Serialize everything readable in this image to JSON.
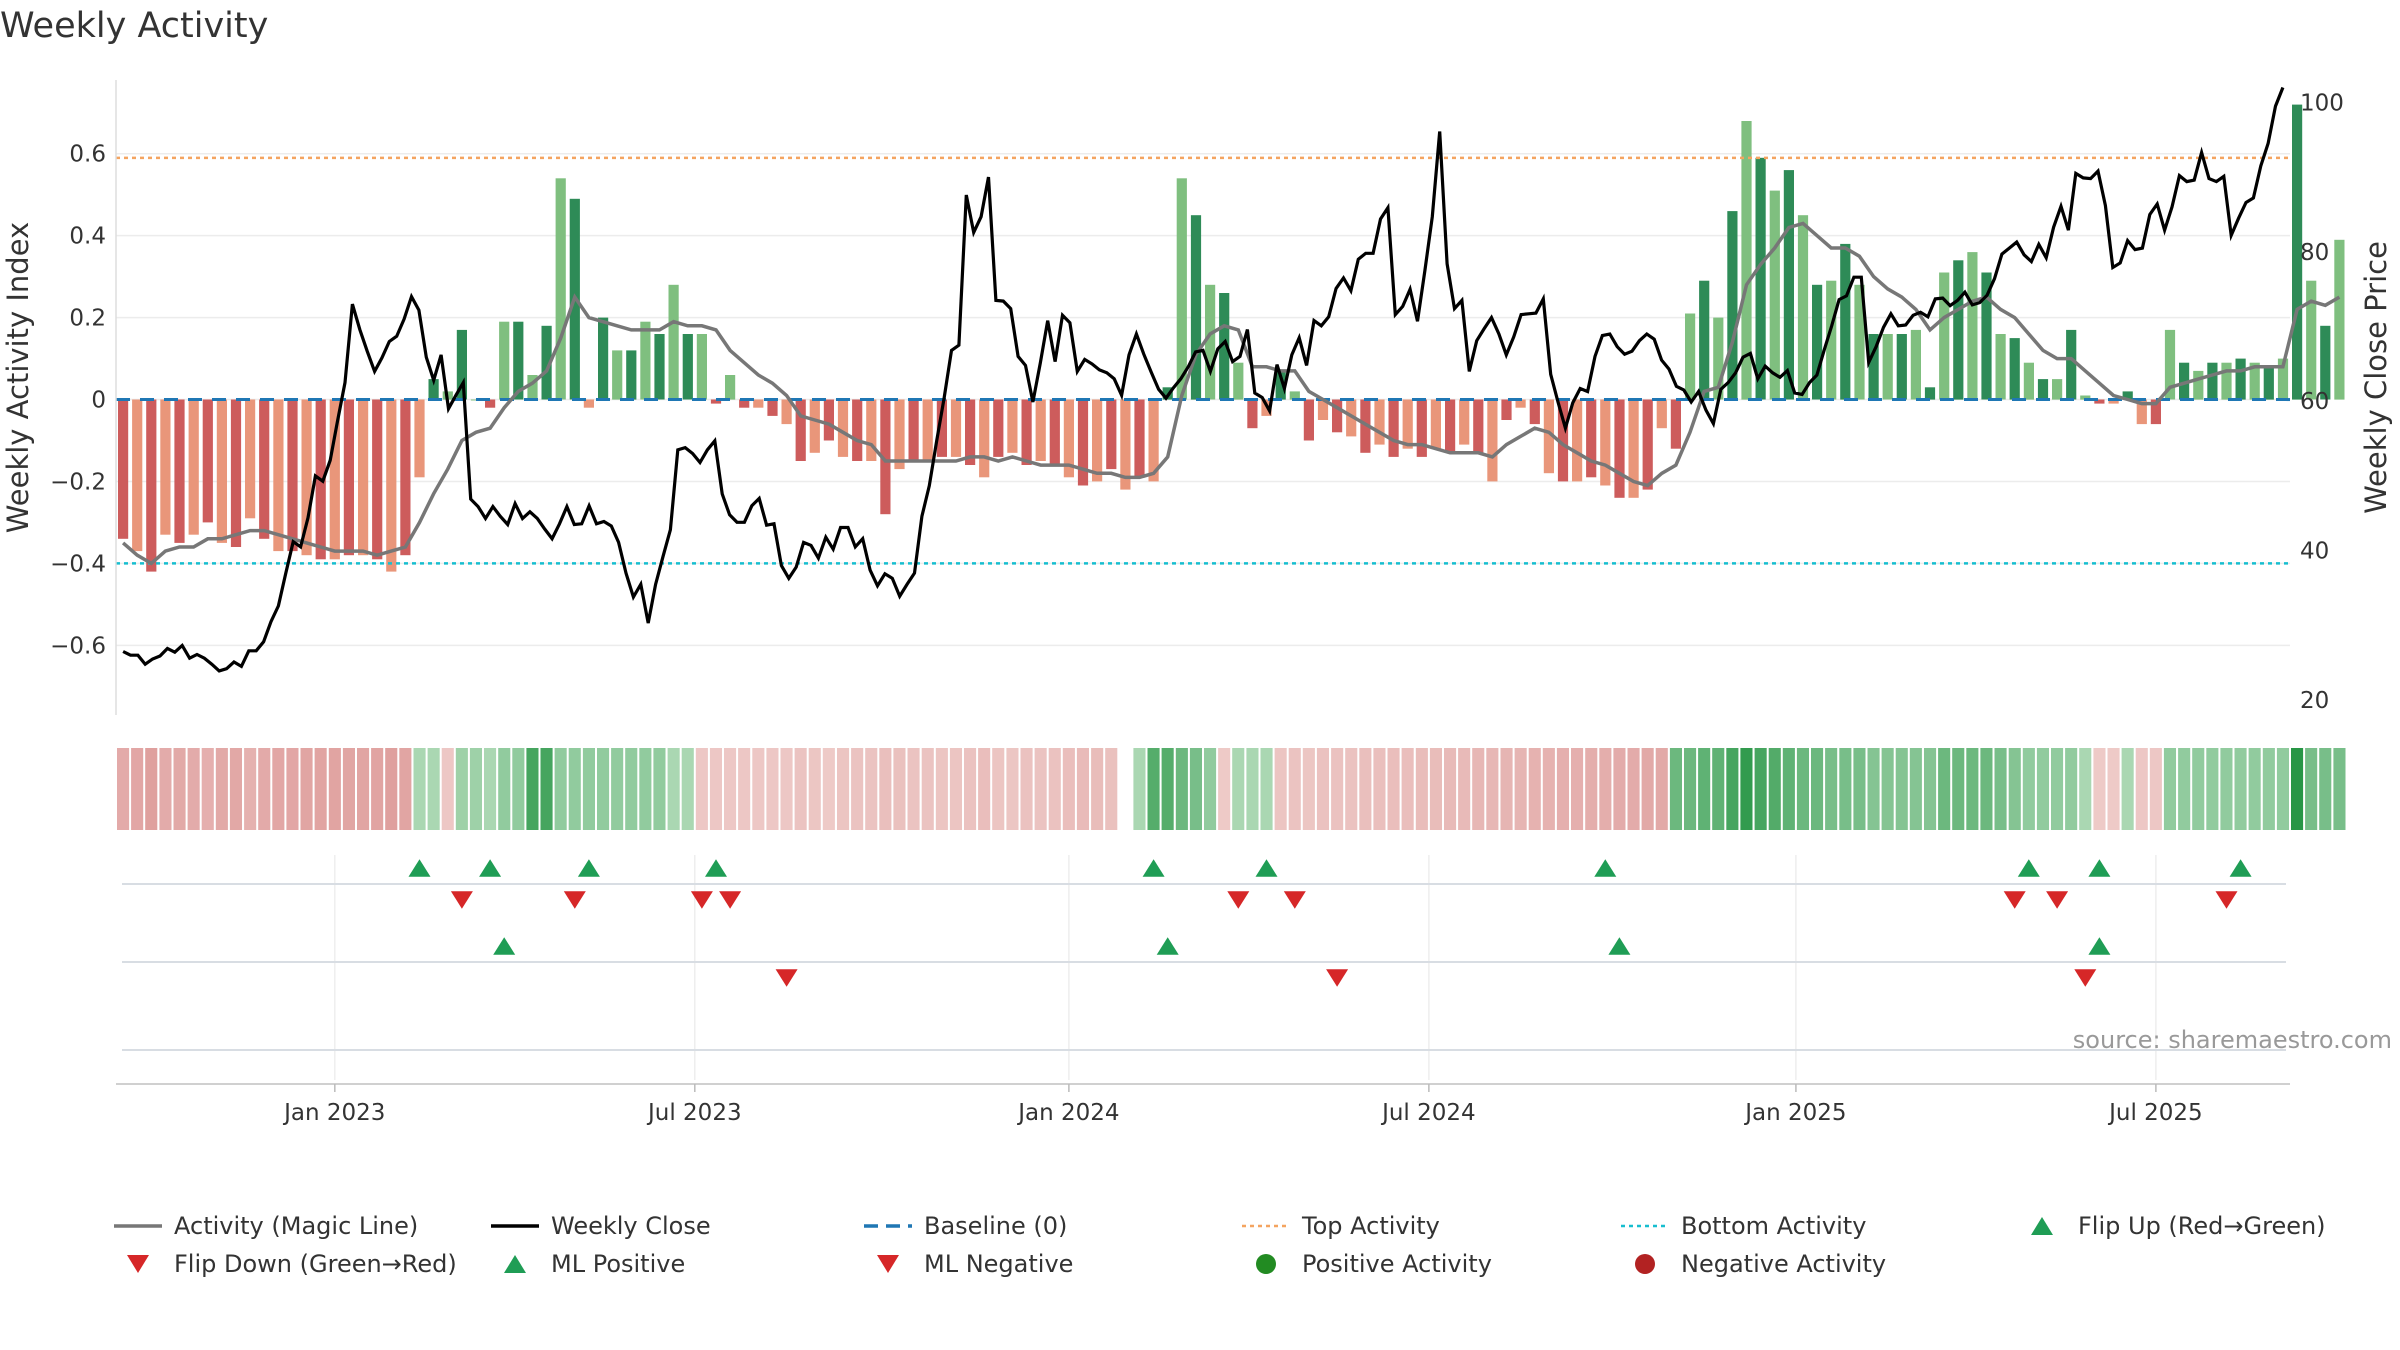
{
  "title": "Weekly Activity",
  "source": "source: sharemaestro.com",
  "colors": {
    "green_strong": "#2e8b57",
    "green_light": "#7fbf7f",
    "red_strong": "#cd5c5c",
    "red_light": "#e9967a",
    "magic_line": "#777777",
    "close_line": "#000000",
    "baseline": "#1f77b4",
    "top": "#f4a460",
    "bottom": "#17becf",
    "flip_up": "#1f9d55",
    "flip_down": "#d62728"
  },
  "chart_data": {
    "type": "bar+line",
    "title": "Weekly Activity",
    "ylabel_left": "Weekly Activity Index",
    "ylabel_right": "Weekly Close Price",
    "ylim_left": [
      -0.77,
      0.78
    ],
    "ylim_right": [
      18,
      103
    ],
    "yticks_left": [
      {
        "v": 0.6,
        "label": "0.6"
      },
      {
        "v": 0.4,
        "label": "0.4"
      },
      {
        "v": 0.2,
        "label": "0.2"
      },
      {
        "v": 0,
        "label": "0"
      },
      {
        "v": -0.2,
        "label": "−0.2"
      },
      {
        "v": -0.4,
        "label": "−0.4"
      },
      {
        "v": -0.6,
        "label": "−0.6"
      }
    ],
    "yticks_right": [
      {
        "v": 100,
        "label": "100"
      },
      {
        "v": 80,
        "label": "80"
      },
      {
        "v": 60,
        "label": "60"
      },
      {
        "v": 40,
        "label": "40"
      },
      {
        "v": 20,
        "label": "20"
      }
    ],
    "x_range_weeks": [
      0,
      154
    ],
    "xticks": [
      {
        "week": 15,
        "label": "Jan 2023"
      },
      {
        "week": 40.5,
        "label": "Jul 2023"
      },
      {
        "week": 67,
        "label": "Jan 2024"
      },
      {
        "week": 92.5,
        "label": "Jul 2024"
      },
      {
        "week": 118.5,
        "label": "Jan 2025"
      },
      {
        "week": 144,
        "label": "Jul 2025"
      }
    ],
    "top_activity": 0.59,
    "bottom_activity": -0.4,
    "baseline": 0,
    "activity": [
      -0.34,
      -0.37,
      -0.42,
      -0.33,
      -0.35,
      -0.33,
      -0.3,
      -0.35,
      -0.36,
      -0.29,
      -0.34,
      -0.37,
      -0.37,
      -0.38,
      -0.39,
      -0.39,
      -0.38,
      -0.38,
      -0.39,
      -0.42,
      -0.38,
      -0.19,
      0.05,
      0.02,
      0.17,
      0,
      -0.02,
      0.19,
      0.19,
      0.06,
      0.18,
      0.54,
      0.49,
      -0.02,
      0.2,
      0.12,
      0.12,
      0.19,
      0.16,
      0.28,
      0.16,
      0.16,
      -0.01,
      0.06,
      -0.02,
      -0.02,
      -0.04,
      -0.06,
      -0.15,
      -0.13,
      -0.1,
      -0.14,
      -0.15,
      -0.15,
      -0.28,
      -0.17,
      -0.15,
      -0.15,
      -0.14,
      -0.14,
      -0.16,
      -0.19,
      -0.14,
      -0.13,
      -0.16,
      -0.15,
      -0.16,
      -0.19,
      -0.21,
      -0.2,
      -0.17,
      -0.22,
      -0.19,
      -0.2,
      0.03,
      0.54,
      0.45,
      0.28,
      0.26,
      0.09,
      -0.07,
      -0.04,
      0.07,
      0.02,
      -0.1,
      -0.05,
      -0.08,
      -0.09,
      -0.13,
      -0.11,
      -0.14,
      -0.12,
      -0.14,
      -0.12,
      -0.13,
      -0.11,
      -0.13,
      -0.2,
      -0.05,
      -0.02,
      -0.06,
      -0.18,
      -0.2,
      -0.2,
      -0.19,
      -0.21,
      -0.24,
      -0.24,
      -0.22,
      -0.07,
      -0.12,
      0.21,
      0.29,
      0.2,
      0.46,
      0.68,
      0.59,
      0.51,
      0.56,
      0.45,
      0.28,
      0.29,
      0.38,
      0.28,
      0.16,
      0.16,
      0.16,
      0.17,
      0.03,
      0.31,
      0.34,
      0.36,
      0.31,
      0.16,
      0.15,
      0.09,
      0.05,
      0.05,
      0.17,
      0.01,
      -0.01,
      -0.01,
      0.02,
      -0.06,
      -0.06,
      0.17,
      0.09,
      0.07,
      0.09,
      0.09,
      0.1,
      0.09,
      0.08,
      0.1,
      0.72,
      0.29,
      0.18,
      0.39
    ],
    "magic_line": [
      -0.35,
      -0.38,
      -0.4,
      -0.37,
      -0.36,
      -0.36,
      -0.34,
      -0.34,
      -0.33,
      -0.32,
      -0.32,
      -0.33,
      -0.34,
      -0.35,
      -0.36,
      -0.37,
      -0.37,
      -0.37,
      -0.38,
      -0.37,
      -0.36,
      -0.3,
      -0.23,
      -0.17,
      -0.1,
      -0.08,
      -0.07,
      -0.02,
      0.02,
      0.04,
      0.07,
      0.15,
      0.25,
      0.2,
      0.19,
      0.18,
      0.17,
      0.17,
      0.17,
      0.19,
      0.18,
      0.18,
      0.17,
      0.12,
      0.09,
      0.06,
      0.04,
      0.01,
      -0.04,
      -0.05,
      -0.06,
      -0.08,
      -0.1,
      -0.11,
      -0.15,
      -0.15,
      -0.15,
      -0.15,
      -0.15,
      -0.15,
      -0.14,
      -0.14,
      -0.15,
      -0.14,
      -0.15,
      -0.16,
      -0.16,
      -0.16,
      -0.17,
      -0.18,
      -0.18,
      -0.19,
      -0.19,
      -0.18,
      -0.14,
      0.01,
      0.11,
      0.16,
      0.18,
      0.17,
      0.08,
      0.08,
      0.07,
      0.07,
      0.02,
      0,
      -0.02,
      -0.04,
      -0.06,
      -0.08,
      -0.1,
      -0.11,
      -0.11,
      -0.12,
      -0.13,
      -0.13,
      -0.13,
      -0.14,
      -0.11,
      -0.09,
      -0.07,
      -0.08,
      -0.11,
      -0.13,
      -0.15,
      -0.16,
      -0.18,
      -0.2,
      -0.21,
      -0.18,
      -0.16,
      -0.08,
      0.02,
      0.03,
      0.14,
      0.28,
      0.33,
      0.37,
      0.42,
      0.43,
      0.4,
      0.37,
      0.37,
      0.35,
      0.3,
      0.27,
      0.25,
      0.22,
      0.17,
      0.2,
      0.22,
      0.24,
      0.25,
      0.22,
      0.2,
      0.16,
      0.12,
      0.1,
      0.1,
      0.07,
      0.04,
      0.01,
      0,
      -0.01,
      -0.01,
      0.03,
      0.04,
      0.05,
      0.06,
      0.07,
      0.07,
      0.08,
      0.08,
      0.08,
      0.22,
      0.24,
      0.23,
      0.25
    ],
    "weekly_close": [
      26.5,
      26,
      26,
      24.8,
      25.5,
      25.9,
      26.9,
      26.4,
      27.3,
      25.6,
      26.1,
      25.6,
      24.8,
      23.9,
      24.2,
      25.1,
      24.5,
      26.6,
      26.6,
      27.8,
      30.5,
      32.6,
      37,
      41.2,
      40.5,
      44.4,
      50,
      49.3,
      52.1,
      57.4,
      62.5,
      73,
      69.6,
      66.7,
      64,
      65.8,
      68,
      68.7,
      71,
      74,
      72.2,
      65.9,
      62.8,
      66.2,
      59,
      60.8,
      62.5,
      46.9,
      45.9,
      44.3,
      45.9,
      44.6,
      43.5,
      46.3,
      44.3,
      45.2,
      44.3,
      42.9,
      41.6,
      43.6,
      45.9,
      43.5,
      43.6,
      46,
      43.6,
      43.9,
      43.3,
      41.1,
      37,
      33.8,
      35.5,
      30.3,
      35.5,
      39.2,
      42.8,
      53.5,
      53.8,
      53,
      51.8,
      53.5,
      54.7,
      47.6,
      44.8,
      43.8,
      43.8,
      46,
      47,
      43.4,
      43.6,
      38,
      36.3,
      37.8,
      41.1,
      40.7,
      39,
      41.8,
      40.2,
      43.1,
      43.1,
      40.5,
      41.6,
      37.4,
      35.3,
      36.9,
      36.3,
      33.9,
      35.5,
      37,
      44.6,
      48.7,
      54.7,
      60.4,
      66.8,
      67.5,
      87.6,
      82.6,
      84.7,
      90,
      73.5,
      73.4,
      72.4,
      66,
      64.8,
      59.9,
      65.1,
      70.8,
      65.3,
      71.5,
      70.5,
      64,
      65.6,
      65,
      64.2,
      63.8,
      63,
      60.8,
      66.2,
      69,
      66.3,
      63.9,
      61.6,
      60.4,
      61.8,
      63,
      64.6,
      66.6,
      66.8,
      64,
      67,
      68,
      65.3,
      66,
      69.6,
      61.1,
      60.5,
      58.7,
      64.9,
      61.7,
      66.2,
      68.5,
      64.8,
      70.8,
      70.1,
      71.3,
      75.1,
      76.5,
      74.8,
      79,
      79.8,
      79.8,
      84.4,
      85.9,
      71.6,
      72.7,
      75,
      70.7,
      77.5,
      84.7,
      96.1,
      78.4,
      72.4,
      73.5,
      64,
      68.1,
      69.7,
      71.2,
      69,
      66.2,
      68.6,
      71.6,
      71.7,
      71.8,
      73.7,
      63.6,
      59.9,
      56.4,
      59.8,
      61.7,
      61.3,
      66,
      68.8,
      69,
      67.3,
      66.3,
      66.7,
      68.1,
      69,
      68.3,
      65.5,
      64.3,
      62,
      61.5,
      59.9,
      61.3,
      58.8,
      57,
      61.6,
      62.5,
      63.8,
      65.9,
      66.4,
      63,
      64.7,
      63.8,
      63.2,
      64.1,
      61.1,
      60.9,
      62.5,
      63.5,
      66.9,
      70.1,
      73.6,
      74.1,
      76.6,
      76.6,
      65.2,
      67.3,
      69.9,
      71.7,
      70.1,
      70.2,
      71.5,
      71.9,
      71.3,
      73.7,
      73.8,
      72.8,
      73.5,
      74.6,
      72.9,
      73.2,
      74.2,
      76.4,
      79.7,
      80.5,
      81.3,
      79.6,
      78.7,
      81,
      79.2,
      83.3,
      86.1,
      82.9,
      90.5,
      89.9,
      89.8,
      90.8,
      86.2,
      77.9,
      78.5,
      81.5,
      80.3,
      80.5,
      85,
      86.4,
      82.9,
      86,
      90.2,
      89.4,
      89.6,
      93.3,
      89.8,
      89.4,
      90.1,
      82.2,
      84.5,
      86.6,
      87.2,
      91.5,
      94.5,
      99.5,
      102
    ],
    "heat_strip": [
      -0.34,
      -0.37,
      -0.42,
      -0.33,
      -0.35,
      -0.33,
      -0.3,
      -0.35,
      -0.36,
      -0.29,
      -0.34,
      -0.37,
      -0.37,
      -0.38,
      -0.39,
      -0.39,
      -0.38,
      -0.38,
      -0.39,
      -0.42,
      -0.38,
      0.2,
      0.2,
      -0.12,
      0.25,
      0.25,
      0.2,
      0.3,
      0.3,
      0.6,
      0.6,
      0.3,
      0.3,
      0.3,
      0.3,
      0.3,
      0.3,
      0.3,
      0.3,
      0.2,
      0.2,
      -0.12,
      -0.12,
      -0.12,
      -0.12,
      -0.12,
      -0.12,
      -0.12,
      -0.15,
      -0.13,
      -0.1,
      -0.14,
      -0.15,
      -0.15,
      -0.18,
      -0.17,
      -0.15,
      -0.15,
      -0.14,
      -0.14,
      -0.16,
      -0.19,
      -0.14,
      -0.13,
      -0.16,
      -0.15,
      -0.16,
      -0.19,
      -0.21,
      -0.2,
      -0.17,
      null,
      0.2,
      0.54,
      0.54,
      0.45,
      0.4,
      0.3,
      -0.1,
      0.2,
      0.2,
      0.2,
      -0.14,
      -0.15,
      -0.13,
      -0.16,
      -0.16,
      -0.16,
      -0.18,
      -0.18,
      -0.19,
      -0.19,
      -0.2,
      -0.2,
      -0.22,
      -0.22,
      -0.24,
      -0.24,
      -0.26,
      -0.26,
      -0.28,
      -0.28,
      -0.3,
      -0.3,
      -0.31,
      -0.31,
      -0.33,
      -0.33,
      -0.35,
      -0.35,
      0.45,
      0.45,
      0.5,
      0.5,
      0.6,
      0.68,
      0.6,
      0.55,
      0.5,
      0.45,
      0.45,
      0.4,
      0.4,
      0.4,
      0.35,
      0.35,
      0.35,
      0.35,
      0.35,
      0.45,
      0.45,
      0.45,
      0.45,
      0.4,
      0.35,
      0.3,
      0.3,
      0.3,
      0.3,
      0.2,
      -0.1,
      -0.1,
      0.2,
      -0.12,
      -0.12,
      0.3,
      0.3,
      0.3,
      0.3,
      0.3,
      0.3,
      0.3,
      0.3,
      0.3,
      0.72,
      0.4,
      0.4,
      0.4
    ],
    "flip_up_weeks": [
      21,
      26,
      33,
      42,
      73,
      81,
      105,
      135,
      140,
      150
    ],
    "flip_down_weeks": [
      24,
      32,
      41,
      43,
      79,
      83,
      134,
      137,
      149
    ],
    "ml_positive_weeks": [
      27,
      74,
      106,
      140
    ],
    "ml_negative_weeks": [
      47,
      86,
      139
    ],
    "legend": [
      {
        "label": "Activity (Magic Line)",
        "kind": "line",
        "color": "#777777"
      },
      {
        "label": "Weekly Close",
        "kind": "line",
        "color": "#000000"
      },
      {
        "label": "Baseline (0)",
        "kind": "dash",
        "color": "#1f77b4"
      },
      {
        "label": "Top Activity",
        "kind": "dot",
        "color": "#f4a460"
      },
      {
        "label": "Bottom Activity",
        "kind": "dot",
        "color": "#17becf"
      },
      {
        "label": "Flip Up (Red→Green)",
        "kind": "up",
        "color": "#1f9d55"
      },
      {
        "label": "Flip Down (Green→Red)",
        "kind": "down",
        "color": "#d62728"
      },
      {
        "label": "ML Positive",
        "kind": "up",
        "color": "#1f9d55"
      },
      {
        "label": "ML Negative",
        "kind": "down",
        "color": "#d62728"
      },
      {
        "label": "Positive Activity",
        "kind": "circle",
        "color": "#228b22"
      },
      {
        "label": "Negative Activity",
        "kind": "circle",
        "color": "#b22222"
      }
    ]
  }
}
